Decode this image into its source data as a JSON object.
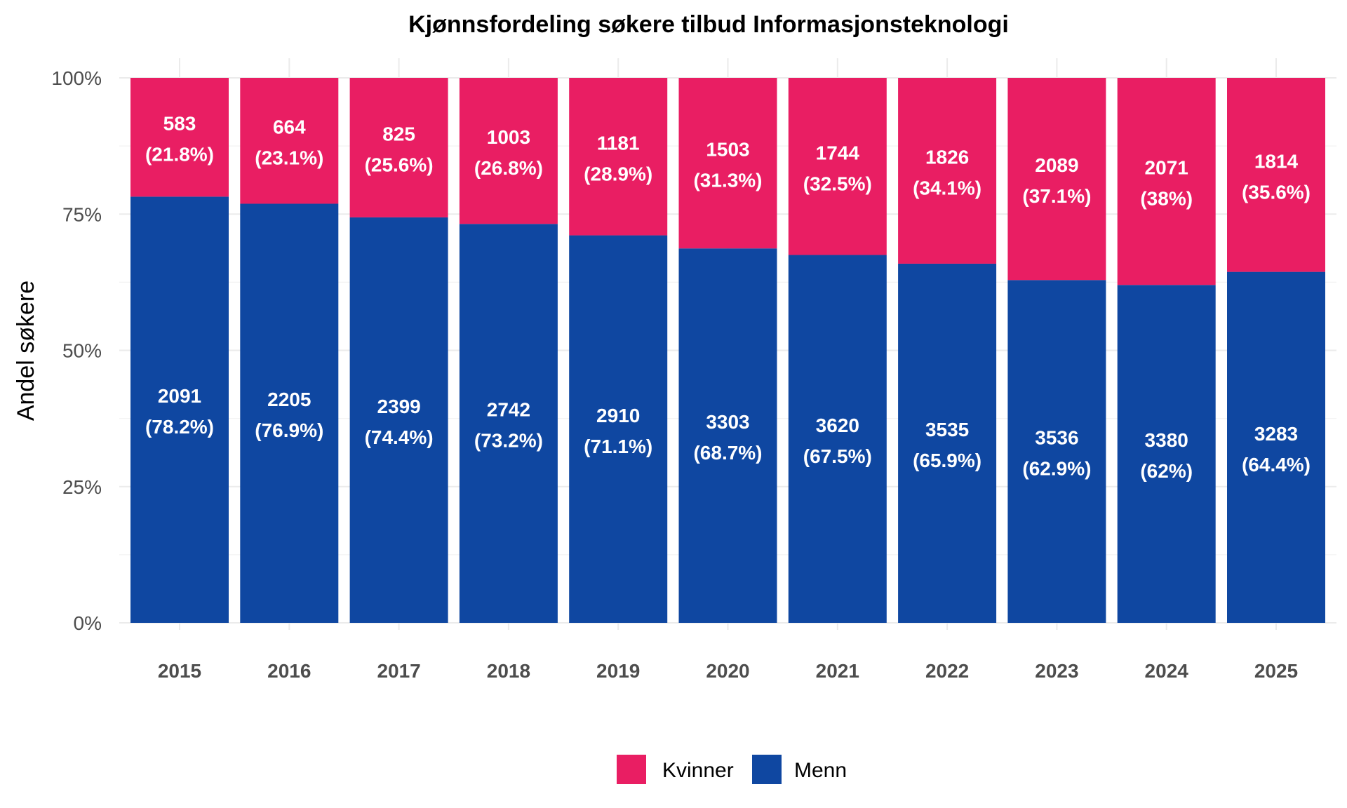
{
  "chart_data": {
    "type": "bar",
    "stacked": true,
    "normalized": true,
    "title": "Kjønnsfordeling søkere tilbud Informasjonsteknologi",
    "xlabel": "",
    "ylabel": "Andel søkere",
    "ylim": [
      0,
      1
    ],
    "yticks": [
      0,
      0.25,
      0.5,
      0.75,
      1
    ],
    "ytick_labels": [
      "0%",
      "25%",
      "50%",
      "75%",
      "100%"
    ],
    "grid": true,
    "legend_position": "bottom",
    "categories": [
      "2015",
      "2016",
      "2017",
      "2018",
      "2019",
      "2020",
      "2021",
      "2022",
      "2023",
      "2024",
      "2025"
    ],
    "series": [
      {
        "name": "Menn",
        "color": "#0F47A1",
        "counts": [
          2091,
          2205,
          2399,
          2742,
          2910,
          3303,
          3620,
          3535,
          3536,
          3380,
          3283
        ],
        "shares": [
          0.782,
          0.769,
          0.744,
          0.732,
          0.711,
          0.687,
          0.675,
          0.659,
          0.629,
          0.62,
          0.644
        ],
        "labels_count": [
          "2091",
          "2205",
          "2399",
          "2742",
          "2910",
          "3303",
          "3620",
          "3535",
          "3536",
          "3380",
          "3283"
        ],
        "labels_pct": [
          "(78.2%)",
          "(76.9%)",
          "(74.4%)",
          "(73.2%)",
          "(71.1%)",
          "(68.7%)",
          "(67.5%)",
          "(65.9%)",
          "(62.9%)",
          "(62%)",
          "(64.4%)"
        ]
      },
      {
        "name": "Kvinner",
        "color": "#E91E63",
        "counts": [
          583,
          664,
          825,
          1003,
          1181,
          1503,
          1744,
          1826,
          2089,
          2071,
          1814
        ],
        "shares": [
          0.218,
          0.231,
          0.256,
          0.268,
          0.289,
          0.313,
          0.325,
          0.341,
          0.371,
          0.38,
          0.356
        ],
        "labels_count": [
          "583",
          "664",
          "825",
          "1003",
          "1181",
          "1503",
          "1744",
          "1826",
          "2089",
          "2071",
          "1814"
        ],
        "labels_pct": [
          "(21.8%)",
          "(23.1%)",
          "(25.6%)",
          "(26.8%)",
          "(28.9%)",
          "(31.3%)",
          "(32.5%)",
          "(34.1%)",
          "(37.1%)",
          "(38%)",
          "(35.6%)"
        ]
      }
    ],
    "legend": [
      {
        "name": "Kvinner",
        "color": "#E91E63"
      },
      {
        "name": "Menn",
        "color": "#0F47A1"
      }
    ]
  }
}
